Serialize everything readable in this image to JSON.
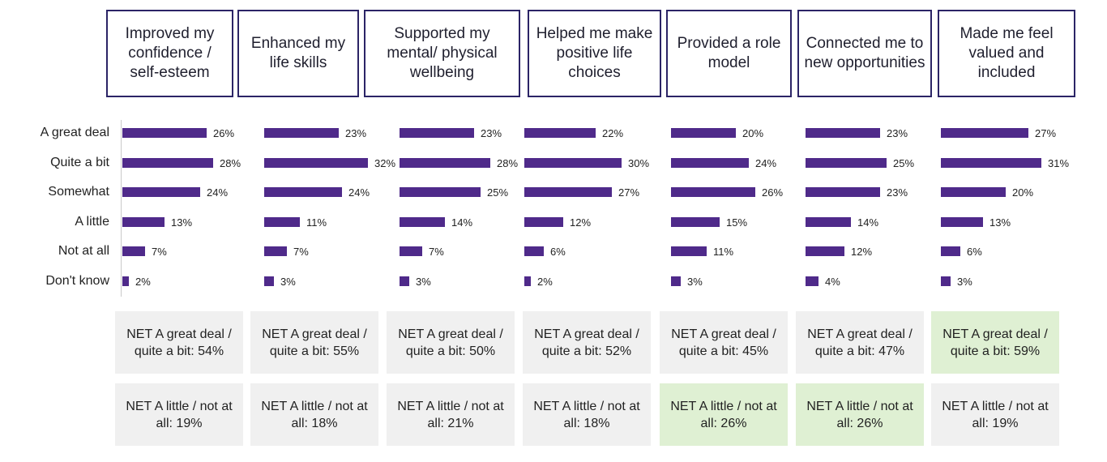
{
  "chart_data": {
    "type": "bar",
    "orientation": "horizontal",
    "categories": [
      "A great deal",
      "Quite a bit",
      "Somewhat",
      "A little",
      "Not at all",
      "Don't know"
    ],
    "series": [
      {
        "name": "Improved my confidence / self-esteem",
        "values": [
          26,
          28,
          24,
          13,
          7,
          2
        ]
      },
      {
        "name": "Enhanced my life skills",
        "values": [
          23,
          32,
          24,
          11,
          7,
          3
        ]
      },
      {
        "name": "Supported my mental/ physical wellbeing",
        "values": [
          23,
          28,
          25,
          14,
          7,
          3
        ]
      },
      {
        "name": "Helped me make positive life choices",
        "values": [
          22,
          30,
          27,
          12,
          6,
          2
        ]
      },
      {
        "name": "Provided a role model",
        "values": [
          20,
          24,
          26,
          15,
          11,
          3
        ]
      },
      {
        "name": "Connected me to new opportunities",
        "values": [
          23,
          25,
          23,
          14,
          12,
          4
        ]
      },
      {
        "name": "Made me feel valued and included",
        "values": [
          27,
          31,
          20,
          13,
          6,
          3
        ]
      }
    ],
    "value_suffix": "%",
    "xlim": [
      0,
      33
    ]
  },
  "net_rows": [
    {
      "items": [
        "NET A great deal / quite a bit: 54%",
        "NET A great deal / quite a bit: 55%",
        "NET A great deal / quite a bit: 50%",
        "NET A great deal / quite a bit: 52%",
        "NET A great deal / quite a bit: 45%",
        "NET A great deal / quite a bit: 47%",
        "NET A great deal / quite a bit: 59%"
      ],
      "highlight": [
        false,
        false,
        false,
        false,
        false,
        false,
        true
      ]
    },
    {
      "items": [
        "NET A little / not at all: 19%",
        "NET A little / not at all: 18%",
        "NET A little / not at all: 21%",
        "NET A little / not at all: 18%",
        "NET A little / not at all: 26%",
        "NET A little / not at all: 26%",
        "NET A little / not at all: 19%"
      ],
      "highlight": [
        false,
        false,
        false,
        false,
        true,
        true,
        false
      ]
    }
  ],
  "colors": {
    "bar": "#4f2a8a",
    "header_border": "#2b2466",
    "net_default": "#f0f0f0",
    "net_highlight": "#dff0d3"
  }
}
